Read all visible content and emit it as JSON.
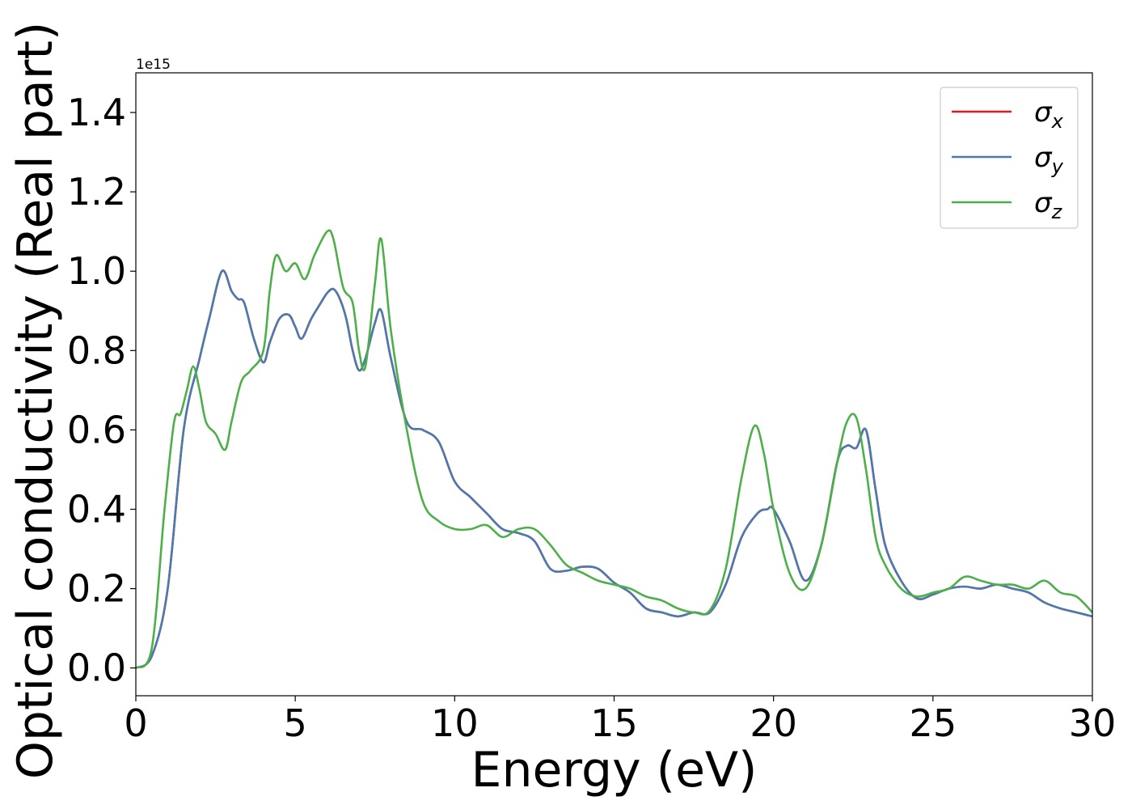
{
  "chart_data": {
    "type": "line",
    "title": "",
    "xlabel": "Energy (eV)",
    "ylabel": "Optical conductivity (Real part)",
    "y_offset_label": "1e15",
    "xlim": [
      0,
      30
    ],
    "ylim": [
      -0.07,
      1.5
    ],
    "xticks": [
      0,
      5,
      10,
      15,
      20,
      25,
      30
    ],
    "xtick_labels": [
      "0",
      "5",
      "10",
      "15",
      "20",
      "25",
      "30"
    ],
    "yticks": [
      0.0,
      0.2,
      0.4,
      0.6,
      0.8,
      1.0,
      1.2,
      1.4
    ],
    "ytick_labels": [
      "0.0",
      "0.2",
      "0.4",
      "0.6",
      "0.8",
      "1.0",
      "1.2",
      "1.4"
    ],
    "grid": false,
    "legend_position": "top-right",
    "series": [
      {
        "name": "σx",
        "symbol": "σ",
        "subscript": "x",
        "color": "#e41a1c",
        "x": [
          0,
          0.5,
          1.0,
          1.5,
          2.0,
          2.3,
          2.7,
          3.0,
          3.2,
          3.4,
          3.7,
          4.0,
          4.2,
          4.5,
          4.8,
          5.0,
          5.2,
          5.5,
          5.8,
          6.0,
          6.2,
          6.4,
          6.6,
          6.8,
          7.0,
          7.2,
          7.5,
          7.7,
          8.0,
          8.5,
          9.0,
          9.5,
          10.0,
          10.5,
          11.0,
          11.5,
          12.0,
          12.5,
          13.0,
          13.5,
          14.0,
          14.5,
          15.0,
          15.5,
          16.0,
          16.5,
          17.0,
          17.5,
          18.0,
          18.5,
          19.0,
          19.5,
          19.8,
          20.0,
          20.5,
          21.0,
          21.5,
          22.0,
          22.3,
          22.6,
          22.9,
          23.2,
          23.5,
          24.0,
          24.5,
          25.0,
          25.5,
          26.0,
          26.5,
          27.0,
          27.5,
          28.0,
          28.5,
          29.0,
          29.5,
          30.0
        ],
        "y": [
          0.0,
          0.03,
          0.2,
          0.6,
          0.78,
          0.88,
          1.0,
          0.95,
          0.93,
          0.92,
          0.83,
          0.77,
          0.82,
          0.88,
          0.89,
          0.86,
          0.83,
          0.88,
          0.92,
          0.945,
          0.955,
          0.93,
          0.88,
          0.8,
          0.75,
          0.78,
          0.87,
          0.9,
          0.78,
          0.62,
          0.6,
          0.57,
          0.47,
          0.43,
          0.39,
          0.35,
          0.34,
          0.32,
          0.25,
          0.245,
          0.255,
          0.25,
          0.215,
          0.19,
          0.15,
          0.14,
          0.13,
          0.14,
          0.14,
          0.21,
          0.33,
          0.39,
          0.4,
          0.4,
          0.32,
          0.22,
          0.31,
          0.52,
          0.56,
          0.555,
          0.6,
          0.45,
          0.31,
          0.22,
          0.175,
          0.185,
          0.2,
          0.205,
          0.2,
          0.21,
          0.2,
          0.19,
          0.165,
          0.15,
          0.14,
          0.13
        ]
      },
      {
        "name": "σy",
        "symbol": "σ",
        "subscript": "y",
        "color": "#4a7ab0",
        "x": [
          0,
          0.5,
          1.0,
          1.5,
          2.0,
          2.3,
          2.7,
          3.0,
          3.2,
          3.4,
          3.7,
          4.0,
          4.2,
          4.5,
          4.8,
          5.0,
          5.2,
          5.5,
          5.8,
          6.0,
          6.2,
          6.4,
          6.6,
          6.8,
          7.0,
          7.2,
          7.5,
          7.7,
          8.0,
          8.5,
          9.0,
          9.5,
          10.0,
          10.5,
          11.0,
          11.5,
          12.0,
          12.5,
          13.0,
          13.5,
          14.0,
          14.5,
          15.0,
          15.5,
          16.0,
          16.5,
          17.0,
          17.5,
          18.0,
          18.5,
          19.0,
          19.5,
          19.8,
          20.0,
          20.5,
          21.0,
          21.5,
          22.0,
          22.3,
          22.6,
          22.9,
          23.2,
          23.5,
          24.0,
          24.5,
          25.0,
          25.5,
          26.0,
          26.5,
          27.0,
          27.5,
          28.0,
          28.5,
          29.0,
          29.5,
          30.0
        ],
        "y": [
          0.0,
          0.03,
          0.2,
          0.6,
          0.78,
          0.88,
          1.0,
          0.95,
          0.93,
          0.92,
          0.83,
          0.77,
          0.82,
          0.88,
          0.89,
          0.86,
          0.83,
          0.88,
          0.92,
          0.945,
          0.955,
          0.93,
          0.88,
          0.8,
          0.75,
          0.78,
          0.87,
          0.9,
          0.78,
          0.62,
          0.6,
          0.57,
          0.47,
          0.43,
          0.39,
          0.35,
          0.34,
          0.32,
          0.25,
          0.245,
          0.255,
          0.25,
          0.215,
          0.19,
          0.15,
          0.14,
          0.13,
          0.14,
          0.14,
          0.21,
          0.33,
          0.39,
          0.4,
          0.4,
          0.32,
          0.22,
          0.31,
          0.52,
          0.56,
          0.555,
          0.6,
          0.45,
          0.31,
          0.22,
          0.175,
          0.185,
          0.2,
          0.205,
          0.2,
          0.21,
          0.2,
          0.19,
          0.165,
          0.15,
          0.14,
          0.13
        ]
      },
      {
        "name": "σz",
        "symbol": "σ",
        "subscript": "z",
        "color": "#4daf4a",
        "x": [
          0,
          0.5,
          0.9,
          1.2,
          1.4,
          1.6,
          1.8,
          2.0,
          2.2,
          2.5,
          2.8,
          3.0,
          3.3,
          3.6,
          4.0,
          4.2,
          4.4,
          4.7,
          5.0,
          5.3,
          5.6,
          6.0,
          6.2,
          6.5,
          6.8,
          7.0,
          7.2,
          7.5,
          7.7,
          8.0,
          8.5,
          9.0,
          9.5,
          10.0,
          10.5,
          11.0,
          11.5,
          12.0,
          12.5,
          13.0,
          13.5,
          14.0,
          14.5,
          15.0,
          15.5,
          16.0,
          16.5,
          17.0,
          17.5,
          18.0,
          18.5,
          19.0,
          19.4,
          19.7,
          20.0,
          20.5,
          21.0,
          21.5,
          22.0,
          22.3,
          22.6,
          22.9,
          23.2,
          23.5,
          24.0,
          24.5,
          25.0,
          25.5,
          26.0,
          26.5,
          27.0,
          27.5,
          28.0,
          28.5,
          29.0,
          29.5,
          30.0
        ],
        "y": [
          0.0,
          0.05,
          0.4,
          0.62,
          0.64,
          0.7,
          0.76,
          0.7,
          0.62,
          0.59,
          0.55,
          0.62,
          0.72,
          0.75,
          0.8,
          0.95,
          1.04,
          1.0,
          1.02,
          0.98,
          1.04,
          1.1,
          1.08,
          0.96,
          0.92,
          0.8,
          0.76,
          0.97,
          1.08,
          0.85,
          0.6,
          0.42,
          0.37,
          0.35,
          0.35,
          0.36,
          0.33,
          0.35,
          0.35,
          0.31,
          0.26,
          0.24,
          0.22,
          0.21,
          0.2,
          0.18,
          0.17,
          0.15,
          0.14,
          0.145,
          0.25,
          0.48,
          0.61,
          0.54,
          0.4,
          0.24,
          0.2,
          0.31,
          0.52,
          0.62,
          0.63,
          0.5,
          0.33,
          0.26,
          0.2,
          0.18,
          0.19,
          0.2,
          0.23,
          0.22,
          0.21,
          0.21,
          0.2,
          0.22,
          0.19,
          0.18,
          0.14
        ]
      }
    ]
  }
}
